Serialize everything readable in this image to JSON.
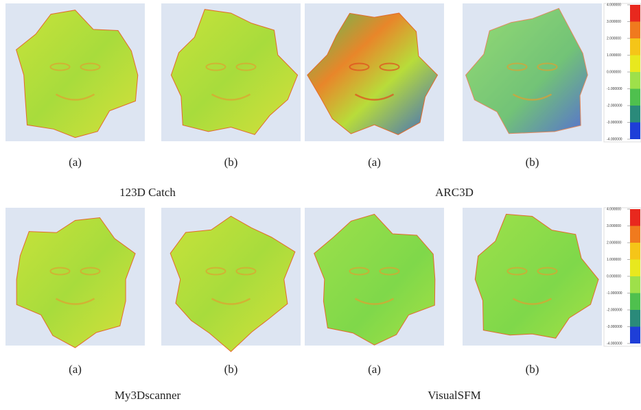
{
  "groups": [
    {
      "title": "123D Catch",
      "panels": [
        {
          "label": "(a)"
        },
        {
          "label": "(b)"
        }
      ]
    },
    {
      "title": "ARC3D",
      "panels": [
        {
          "label": "(a)"
        },
        {
          "label": "(b)"
        }
      ]
    },
    {
      "title": "My3Dscanner",
      "panels": [
        {
          "label": "(a)"
        },
        {
          "label": "(b)"
        }
      ]
    },
    {
      "title": "VisualSFM",
      "panels": [
        {
          "label": "(a)"
        },
        {
          "label": "(b)"
        }
      ]
    }
  ],
  "colorbars": [
    {
      "ticks": [
        "4.000000",
        "3.000000",
        "2.000000",
        "1.000000",
        "0.000000",
        "-1.000000",
        "-2.000000",
        "-3.000000",
        "-4.000000"
      ]
    },
    {
      "ticks": [
        "4.000000",
        "3.000000",
        "2.000000",
        "1.000000",
        "0.000000",
        "-1.000000",
        "-2.000000",
        "-3.000000",
        "-4.000000"
      ]
    }
  ]
}
